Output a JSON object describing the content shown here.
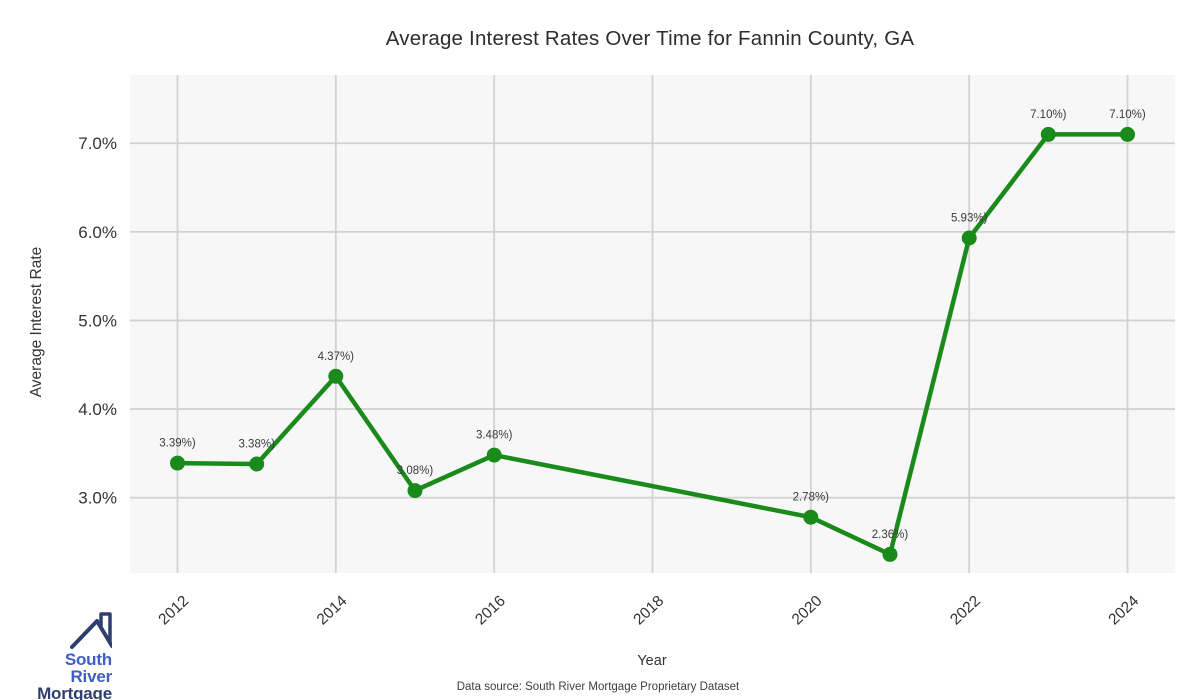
{
  "page": {
    "footer": "Data source: South River Mortgage Proprietary Dataset"
  },
  "logo": {
    "icon": "house-roof-icon",
    "line1": "South River",
    "line2": "Mortgage",
    "color_primary": "#3f5ec2",
    "color_secondary": "#2e3f6e"
  },
  "chart_data": {
    "type": "line",
    "title": "Average Interest Rates Over Time for Fannin County, GA",
    "xlabel": "Year",
    "ylabel": "Average Interest Rate",
    "series_name": "Average Interest Rate",
    "x": [
      2012,
      2013,
      2014,
      2015,
      2016,
      2020,
      2021,
      2022,
      2023,
      2024
    ],
    "values": [
      3.39,
      3.38,
      4.37,
      3.08,
      3.48,
      2.78,
      2.36,
      5.93,
      7.1,
      7.1
    ],
    "point_labels": [
      "3.39%)",
      "3.38%)",
      "4.37%)",
      "3.08%)",
      "3.48%)",
      "2.78%)",
      "2.36%)",
      "5.93%)",
      "7.10%)",
      "7.10%)"
    ],
    "x_ticks": {
      "values": [
        2012,
        2014,
        2016,
        2018,
        2020,
        2022,
        2024
      ],
      "labels": [
        "2012",
        "2014",
        "2016",
        "2018",
        "2020",
        "2022",
        "2024"
      ]
    },
    "y_ticks": {
      "values": [
        3,
        4,
        5,
        6,
        7
      ],
      "labels": [
        "3.0%",
        "4.0%",
        "5.0%",
        "6.0%",
        "7.0%"
      ]
    },
    "xlim": [
      2011.4,
      2024.6
    ],
    "ylim": [
      2.15,
      7.77
    ],
    "grid": true,
    "legend": false,
    "line_color": "#1a8a1a",
    "marker_color": "#1a8a1a",
    "plot_bg": "#f7f7f7",
    "grid_color": "#d2d2d2",
    "point_label_color": "#3a3a3a",
    "tick_label_color": "#333333"
  }
}
